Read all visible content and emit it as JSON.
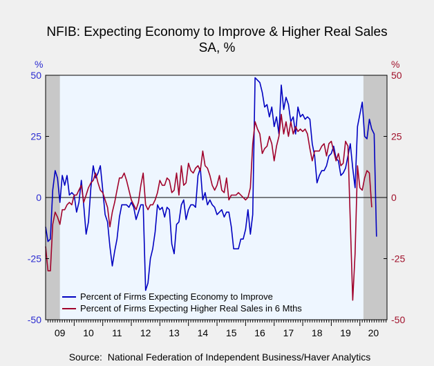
{
  "chart_data": {
    "type": "line",
    "title": "NFIB: Expecting Economy to Improve & Higher Real Sales",
    "subtitle": "SA, %",
    "ylabel_left": "%",
    "ylabel_right": "%",
    "ylim": [
      -50,
      50
    ],
    "yticks": [
      50,
      25,
      0,
      -25,
      -50
    ],
    "xlim": [
      2009.0,
      2020.95
    ],
    "year_labels": [
      "09",
      "10",
      "11",
      "12",
      "13",
      "14",
      "15",
      "16",
      "17",
      "18",
      "19",
      "20"
    ],
    "recessions": [
      [
        2009.0,
        2009.5
      ],
      [
        2020.125,
        2020.95
      ]
    ],
    "legend_position": "bottom-left",
    "source": "Source:  National Federation of Independent Business/Haver Analytics",
    "colors": {
      "economy": "#0000c0",
      "sales": "#a0002a",
      "recession": "#c8c8c8",
      "plot_bg": "#eef6ff"
    },
    "series": [
      {
        "name": "Percent of Firms Expecting Economy to Improve",
        "color": "#0000c0",
        "start": 2009.0,
        "step": 0.08333,
        "values": [
          -12,
          -18,
          -17,
          3,
          11,
          8,
          -2,
          9,
          5,
          9,
          1,
          2,
          1,
          -6,
          -2,
          7,
          -3,
          -15,
          -10,
          4,
          13,
          8,
          10,
          13,
          3,
          -7,
          -10,
          -20,
          -28,
          -22,
          -17,
          -8,
          -3,
          -3,
          -3,
          -4,
          -2,
          -4,
          -9,
          -6,
          -3,
          -3,
          -38,
          -35,
          -25,
          -21,
          -14,
          -3,
          -5,
          -4,
          -8,
          -4,
          -5,
          -19,
          -23,
          -11,
          -10,
          -3,
          -1,
          -9,
          -5,
          -3,
          -3,
          -4,
          9,
          12,
          -1,
          2,
          -3,
          -1,
          -3,
          -4,
          -7,
          -6,
          -5,
          -8,
          -6,
          -6,
          -12,
          -21,
          -21,
          -21,
          -17,
          -17,
          -13,
          -5,
          -15,
          -7,
          49,
          48,
          47,
          43,
          37,
          38,
          33,
          37,
          29,
          33,
          26,
          46,
          36,
          41,
          38,
          31,
          33,
          26,
          37,
          33,
          34,
          32,
          33,
          32,
          22,
          17,
          6,
          9,
          11,
          11,
          13,
          17,
          18,
          21,
          16,
          15,
          9,
          10,
          12,
          17,
          22,
          12,
          4,
          29,
          34,
          39,
          25,
          24,
          32,
          28,
          26,
          -16
        ]
      },
      {
        "name": "Percent of Firms Expecting Higher Real Sales in 6 Mths",
        "color": "#a0002a",
        "start": 2009.0,
        "step": 0.08333,
        "values": [
          -20,
          -30,
          -30,
          -11,
          -6,
          -8,
          -11,
          -5,
          -5,
          -3,
          -2,
          -3,
          1,
          1,
          3,
          5,
          -2,
          1,
          4,
          6,
          7,
          10,
          6,
          3,
          2,
          -1,
          -4,
          -12,
          -6,
          -2,
          3,
          8,
          8,
          10,
          7,
          3,
          -1,
          -3,
          -5,
          -2,
          5,
          10,
          -3,
          -5,
          -3,
          -3,
          -1,
          2,
          7,
          5,
          5,
          8,
          7,
          2,
          3,
          10,
          1,
          13,
          5,
          6,
          14,
          11,
          10,
          12,
          13,
          11,
          19,
          13,
          12,
          9,
          5,
          3,
          5,
          9,
          3,
          2,
          8,
          -1,
          1,
          1,
          1,
          2,
          1,
          0,
          -1,
          0,
          4,
          22,
          31,
          28,
          26,
          18,
          20,
          21,
          25,
          22,
          15,
          21,
          25,
          34,
          26,
          31,
          25,
          31,
          26,
          29,
          27,
          28,
          27,
          28,
          26,
          20,
          15,
          19,
          19,
          19,
          21,
          22,
          17,
          22,
          23,
          19,
          15,
          18,
          13,
          14,
          23,
          21,
          -10,
          -42,
          -23,
          13,
          4,
          3,
          8,
          11,
          10,
          -4
        ]
      }
    ]
  }
}
